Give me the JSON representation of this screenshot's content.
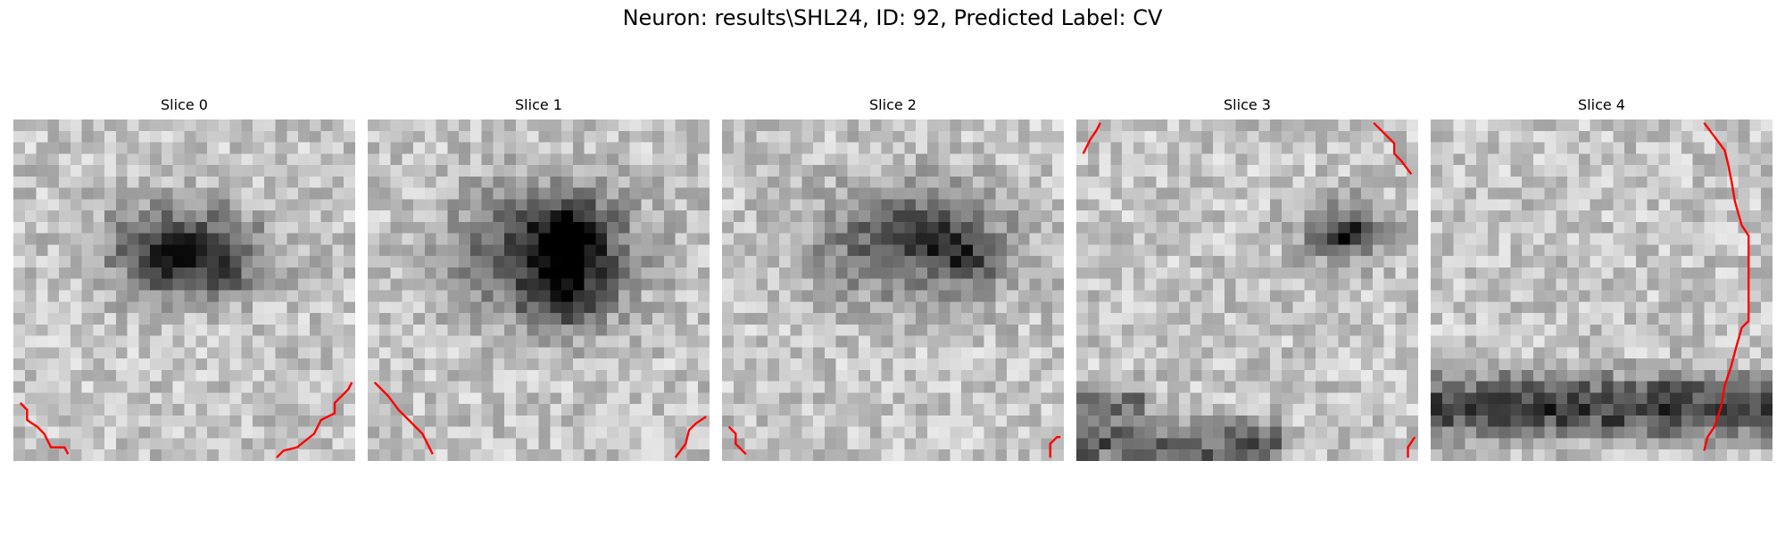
{
  "figure": {
    "title": "Neuron: results\\SHL24, ID: 92, Predicted Label: CV"
  },
  "panels": [
    {
      "title": "Slice 0",
      "seed": 11,
      "blobs": [
        [
          0.5,
          0.38,
          0.22,
          0.13,
          0.55
        ],
        [
          0.45,
          0.42,
          0.08,
          0.06,
          0.3
        ],
        [
          0.62,
          0.45,
          0.07,
          0.06,
          0.25
        ]
      ],
      "bands": [],
      "contours": [
        [
          [
            0.02,
            0.83
          ],
          [
            0.04,
            0.85
          ],
          [
            0.04,
            0.88
          ],
          [
            0.07,
            0.9
          ],
          [
            0.09,
            0.92
          ],
          [
            0.11,
            0.96
          ],
          [
            0.15,
            0.96
          ],
          [
            0.16,
            0.98
          ]
        ],
        [
          [
            0.77,
            0.99
          ],
          [
            0.79,
            0.97
          ],
          [
            0.83,
            0.96
          ],
          [
            0.88,
            0.92
          ],
          [
            0.9,
            0.88
          ],
          [
            0.94,
            0.86
          ],
          [
            0.94,
            0.83
          ],
          [
            0.98,
            0.79
          ],
          [
            0.99,
            0.77
          ]
        ]
      ]
    },
    {
      "title": "Slice 1",
      "seed": 23,
      "blobs": [
        [
          0.52,
          0.38,
          0.25,
          0.18,
          0.55
        ],
        [
          0.6,
          0.35,
          0.1,
          0.1,
          0.4
        ],
        [
          0.58,
          0.52,
          0.12,
          0.1,
          0.4
        ]
      ],
      "bands": [],
      "contours": [
        [
          [
            0.02,
            0.77
          ],
          [
            0.06,
            0.81
          ],
          [
            0.09,
            0.85
          ],
          [
            0.13,
            0.89
          ],
          [
            0.16,
            0.92
          ],
          [
            0.19,
            0.98
          ]
        ],
        [
          [
            0.9,
            0.99
          ],
          [
            0.93,
            0.95
          ],
          [
            0.94,
            0.91
          ],
          [
            0.96,
            0.89
          ],
          [
            0.99,
            0.87
          ]
        ]
      ]
    },
    {
      "title": "Slice 2",
      "seed": 37,
      "blobs": [
        [
          0.55,
          0.36,
          0.28,
          0.16,
          0.45
        ],
        [
          0.72,
          0.42,
          0.07,
          0.06,
          0.35
        ],
        [
          0.62,
          0.34,
          0.07,
          0.06,
          0.3
        ]
      ],
      "bands": [],
      "contours": [
        [
          [
            0.02,
            0.9
          ],
          [
            0.04,
            0.92
          ],
          [
            0.04,
            0.95
          ],
          [
            0.07,
            0.98
          ]
        ],
        [
          [
            0.96,
            0.99
          ],
          [
            0.96,
            0.95
          ],
          [
            0.98,
            0.93
          ],
          [
            0.99,
            0.93
          ]
        ]
      ]
    },
    {
      "title": "Slice 3",
      "seed": 53,
      "blobs": [
        [
          0.78,
          0.33,
          0.12,
          0.09,
          0.45
        ],
        [
          0.8,
          0.34,
          0.04,
          0.03,
          0.35
        ]
      ],
      "bands": [
        [
          0.0,
          0.95,
          0.6,
          0.07,
          0.45
        ],
        [
          0.0,
          0.83,
          0.2,
          0.05,
          0.35
        ]
      ],
      "contours": [
        [
          [
            0.02,
            0.1
          ],
          [
            0.03,
            0.08
          ],
          [
            0.04,
            0.06
          ],
          [
            0.06,
            0.03
          ],
          [
            0.07,
            0.01
          ]
        ],
        [
          [
            0.87,
            0.01
          ],
          [
            0.9,
            0.04
          ],
          [
            0.93,
            0.07
          ],
          [
            0.93,
            0.1
          ],
          [
            0.95,
            0.12
          ],
          [
            0.98,
            0.16
          ]
        ],
        [
          [
            0.97,
            0.99
          ],
          [
            0.97,
            0.96
          ],
          [
            0.99,
            0.93
          ]
        ]
      ]
    },
    {
      "title": "Slice 4",
      "seed": 71,
      "blobs": [],
      "bands": [
        [
          0.0,
          0.86,
          1.0,
          0.07,
          0.55
        ],
        [
          0.0,
          0.78,
          1.0,
          0.05,
          0.25
        ]
      ],
      "contours": [
        [
          [
            0.8,
            0.01
          ],
          [
            0.83,
            0.05
          ],
          [
            0.86,
            0.09
          ],
          [
            0.87,
            0.13
          ],
          [
            0.88,
            0.18
          ],
          [
            0.89,
            0.24
          ],
          [
            0.91,
            0.31
          ],
          [
            0.93,
            0.34
          ],
          [
            0.93,
            0.39
          ],
          [
            0.93,
            0.45
          ],
          [
            0.93,
            0.52
          ],
          [
            0.93,
            0.59
          ],
          [
            0.91,
            0.61
          ],
          [
            0.89,
            0.68
          ],
          [
            0.88,
            0.72
          ],
          [
            0.86,
            0.78
          ],
          [
            0.85,
            0.84
          ],
          [
            0.83,
            0.9
          ],
          [
            0.81,
            0.93
          ],
          [
            0.8,
            0.97
          ]
        ]
      ]
    }
  ],
  "colors": {
    "contour": "#ff0000"
  }
}
